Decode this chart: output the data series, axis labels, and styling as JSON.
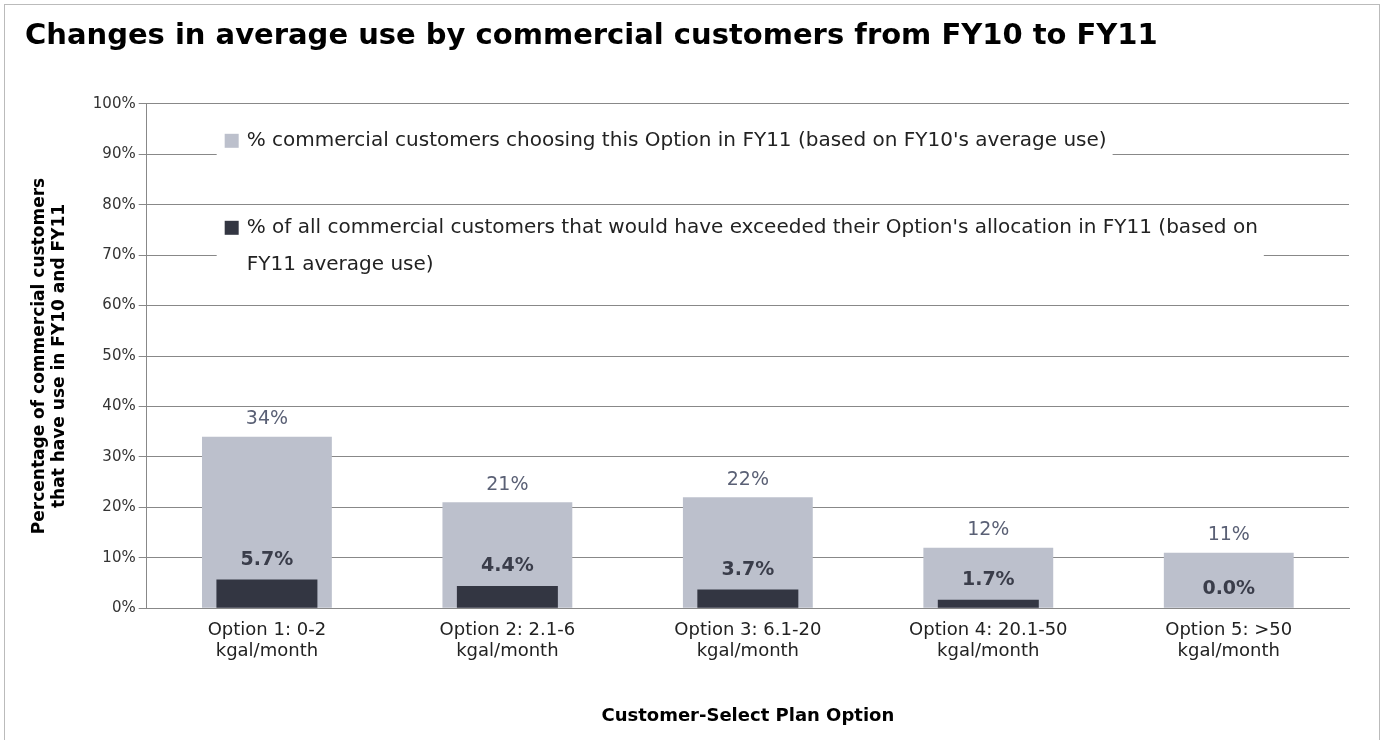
{
  "chart_data": {
    "type": "bar",
    "title": "Changes in average use by commercial customers from FY10 to FY11",
    "xlabel": "Customer-Select Plan Option",
    "ylabel": "Percentage of commercial customers that have use in FY10 and FY11",
    "categories": [
      "Option 1: 0-2 kgal/month",
      "Option 2: 2.1-6 kgal/month",
      "Option 3: 6.1-20 kgal/month",
      "Option 4: 20.1-50 kgal/month",
      "Option 5: >50 kgal/month"
    ],
    "series": [
      {
        "name": "% commercial customers choosing this Option in FY11 (based on FY10's average use)",
        "color": "#bcc0cc",
        "values": [
          34,
          21,
          22,
          12,
          11
        ],
        "value_labels": [
          "34%",
          "21%",
          "22%",
          "12%",
          "11%"
        ]
      },
      {
        "name": "% of all commercial customers that would have exceeded their Option's allocation in FY11 (based on FY11 average use)",
        "color": "#333642",
        "values": [
          5.7,
          4.4,
          3.7,
          1.7,
          0.0
        ],
        "value_labels": [
          "5.7%",
          "4.4%",
          "3.7%",
          "1.7%",
          "0.0%"
        ]
      }
    ],
    "ylim": [
      0,
      100
    ],
    "yticks": [
      {
        "value": 0,
        "label": "0%"
      },
      {
        "value": 10,
        "label": "10%"
      },
      {
        "value": 20,
        "label": "20%"
      },
      {
        "value": 30,
        "label": "30%"
      },
      {
        "value": 40,
        "label": "40%"
      },
      {
        "value": 50,
        "label": "50%"
      },
      {
        "value": 60,
        "label": "60%"
      },
      {
        "value": 70,
        "label": "70%"
      },
      {
        "value": 80,
        "label": "80%"
      },
      {
        "value": 90,
        "label": "90%"
      },
      {
        "value": 100,
        "label": "100%"
      }
    ],
    "grid": "y",
    "legend": "top"
  }
}
